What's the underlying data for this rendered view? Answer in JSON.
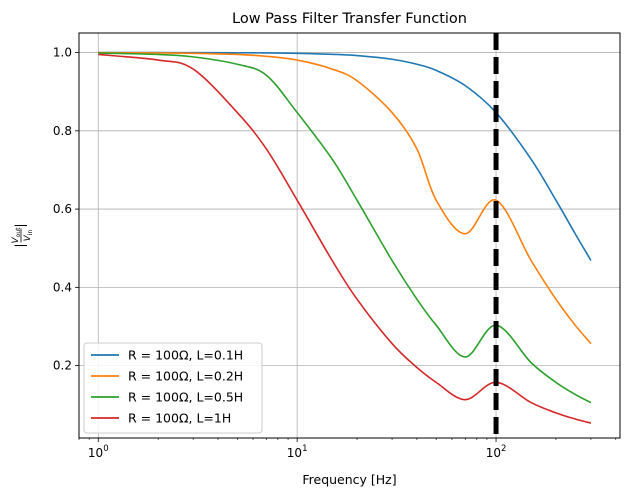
{
  "chart_data": {
    "type": "line",
    "title": "Low Pass Filter Transfer Function",
    "xlabel": "Frequency [Hz]",
    "ylabel": {
      "bar_left": "|",
      "numerator_var": "V",
      "numerator_sub": "out",
      "denominator_var": "V",
      "denominator_sub": "in",
      "bar_right": "|"
    },
    "xscale": "log",
    "xlim": [
      0.8,
      420
    ],
    "ylim": [
      0.015,
      1.05
    ],
    "x_ticks": [
      {
        "value": 1,
        "base": "10",
        "exp": "0"
      },
      {
        "value": 10,
        "base": "10",
        "exp": "1"
      },
      {
        "value": 100,
        "base": "10",
        "exp": "2"
      }
    ],
    "y_ticks": [
      {
        "value": 0.2,
        "label": "0.2"
      },
      {
        "value": 0.4,
        "label": "0.4"
      },
      {
        "value": 0.6,
        "label": "0.6"
      },
      {
        "value": 0.8,
        "label": "0.8"
      },
      {
        "value": 1.0,
        "label": "1.0"
      }
    ],
    "grid": true,
    "legend_position": "lower-left",
    "x": [
      1,
      2,
      3,
      5,
      7,
      10,
      15,
      20,
      30,
      40,
      50,
      70,
      100,
      150,
      200,
      250,
      300
    ],
    "series": [
      {
        "name": "R = 100Ω, L=0.1H",
        "color": "#1f77b4",
        "values": [
          1.0,
          0.9999,
          0.9998,
          0.9995,
          0.999,
          0.998,
          0.9956,
          0.9923,
          0.9829,
          0.9701,
          0.9545,
          0.9155,
          0.8467,
          0.7276,
          0.6227,
          0.537,
          0.4686
        ]
      },
      {
        "name": "R = 100Ω, L=0.2H",
        "color": "#ff7f0e",
        "values": [
          0.9998,
          0.9992,
          0.9982,
          0.9951,
          0.9904,
          0.9808,
          0.9578,
          0.928,
          0.8467,
          0.7536,
          0.6227,
          0.537,
          0.6227,
          0.4686,
          0.3697,
          0.3033,
          0.2563
        ]
      },
      {
        "name": "R = 100Ω, L=0.5H",
        "color": "#2ca02c",
        "values": [
          0.9988,
          0.9951,
          0.989,
          0.9701,
          0.9421,
          0.8467,
          0.7276,
          0.6227,
          0.4686,
          0.3697,
          0.3033,
          0.2221,
          0.3033,
          0.2076,
          0.1572,
          0.1263,
          0.1055
        ]
      },
      {
        "name": "R = 100Ω, L=1H",
        "color": "#d62728",
        "values": [
          0.9951,
          0.9808,
          0.9578,
          0.8467,
          0.7536,
          0.6227,
          0.4686,
          0.3697,
          0.2563,
          0.1951,
          0.1572,
          0.113,
          0.1572,
          0.1055,
          0.0793,
          0.0635,
          0.053
        ]
      }
    ],
    "vline": {
      "x": 100,
      "color": "#000000",
      "style": "dashed"
    }
  }
}
